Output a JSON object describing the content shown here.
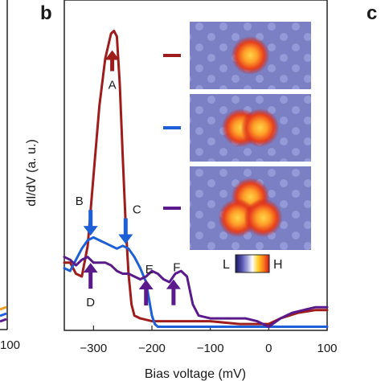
{
  "panels": {
    "left_label": "",
    "main_label": "b",
    "right_label": "c"
  },
  "left_partial": {
    "tick_label": "100",
    "curve_colors": [
      "#f0a020",
      "#2060e0",
      "#5a1a8c"
    ]
  },
  "chart_data": {
    "type": "line",
    "xlabel": "Bias voltage (mV)",
    "ylabel": "dI/dV (a. u.)",
    "xlim": [
      -350,
      100
    ],
    "xticks": [
      -300,
      -200,
      -100,
      0,
      100
    ],
    "xtick_labels": [
      "−300",
      "−200",
      "−100",
      "0",
      "100"
    ],
    "y_units": "arbitrary",
    "series": [
      {
        "color": "#9e1c1c",
        "x": [
          -350,
          -340,
          -330,
          -320,
          -310,
          -300,
          -290,
          -280,
          -270,
          -265,
          -260,
          -255,
          -250,
          -245,
          -240,
          -235,
          -230,
          -220,
          -200,
          -150,
          -100,
          -50,
          -20,
          0,
          20,
          50,
          80,
          100
        ],
        "y": [
          0.24,
          0.24,
          0.2,
          0.19,
          0.3,
          0.55,
          0.8,
          0.97,
          1.06,
          1.07,
          1.05,
          0.88,
          0.62,
          0.38,
          0.2,
          0.09,
          0.05,
          0.04,
          0.03,
          0.03,
          0.03,
          0.02,
          0.02,
          0.02,
          0.04,
          0.06,
          0.07,
          0.07
        ]
      },
      {
        "color": "#1d5fd6",
        "x": [
          -350,
          -340,
          -330,
          -320,
          -310,
          -300,
          -290,
          -280,
          -270,
          -260,
          -250,
          -240,
          -230,
          -220,
          -210,
          -200,
          -195,
          -190,
          -150,
          -100,
          -50,
          0,
          50,
          100
        ],
        "y": [
          0.22,
          0.21,
          0.25,
          0.29,
          0.32,
          0.33,
          0.32,
          0.31,
          0.3,
          0.29,
          0.3,
          0.29,
          0.26,
          0.22,
          0.17,
          0.05,
          0.02,
          0.01,
          0.01,
          0.01,
          0.01,
          0.01,
          0.01,
          0.01
        ]
      },
      {
        "color": "#5a1a8c",
        "x": [
          -350,
          -340,
          -330,
          -320,
          -310,
          -300,
          -290,
          -280,
          -270,
          -260,
          -250,
          -240,
          -230,
          -220,
          -210,
          -200,
          -190,
          -180,
          -170,
          -160,
          -150,
          -140,
          -130,
          -120,
          -100,
          -60,
          -40,
          -20,
          0,
          20,
          40,
          60,
          80,
          100
        ],
        "y": [
          0.26,
          0.25,
          0.23,
          0.25,
          0.26,
          0.24,
          0.24,
          0.24,
          0.23,
          0.21,
          0.2,
          0.2,
          0.19,
          0.18,
          0.19,
          0.21,
          0.2,
          0.18,
          0.17,
          0.2,
          0.21,
          0.19,
          0.09,
          0.05,
          0.04,
          0.04,
          0.04,
          0.03,
          0.01,
          0.04,
          0.06,
          0.07,
          0.08,
          0.08
        ]
      }
    ],
    "annotations": [
      {
        "label": "A",
        "x": -268,
        "dir": "up",
        "color": "#9e1c1c"
      },
      {
        "label": "B",
        "x": -305,
        "dir": "down",
        "color": "#1d5fd6"
      },
      {
        "label": "C",
        "x": -245,
        "dir": "down",
        "color": "#1d5fd6"
      },
      {
        "label": "D",
        "x": -305,
        "dir": "up",
        "color": "#5a1a8c"
      },
      {
        "label": "E",
        "x": -210,
        "dir": "up",
        "color": "#5a1a8c"
      },
      {
        "label": "F",
        "x": -163,
        "dir": "up",
        "color": "#5a1a8c"
      }
    ],
    "insets": [
      {
        "legend_color": "#9e1c1c",
        "blobs": 1
      },
      {
        "legend_color": "#1d5fd6",
        "blobs": 2
      },
      {
        "legend_color": "#5a1a8c",
        "blobs": 3
      }
    ],
    "colorbar": {
      "low_label": "L",
      "high_label": "H",
      "colors": [
        "#1a1a5a",
        "#4a4aa8",
        "#9a9ad8",
        "#ffffff",
        "#ffd02a",
        "#ff7a1a",
        "#c81818"
      ]
    }
  }
}
